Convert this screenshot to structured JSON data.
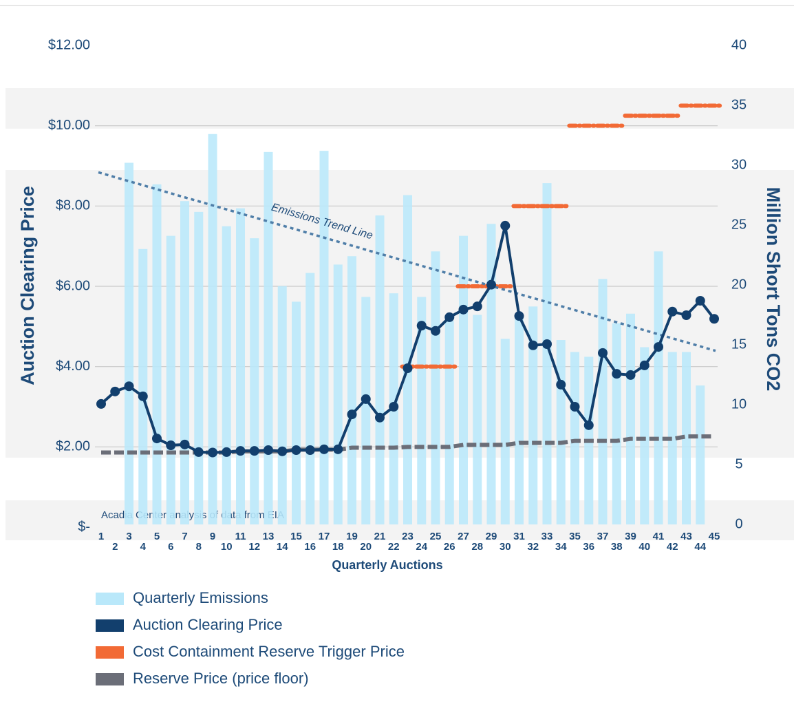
{
  "chart_data": {
    "type": "bar-line",
    "x_label": "Quarterly Auctions",
    "y_label": "Auction Clearing Price",
    "y2_label": "Million Short Tons CO2",
    "source": "Acadia Center analysis of data from EIA",
    "categories": [
      1,
      2,
      3,
      4,
      5,
      6,
      7,
      8,
      9,
      10,
      11,
      12,
      13,
      14,
      15,
      16,
      17,
      18,
      19,
      20,
      21,
      22,
      23,
      24,
      25,
      26,
      27,
      28,
      29,
      30,
      31,
      32,
      33,
      34,
      35,
      36,
      37,
      38,
      39,
      40,
      41,
      42,
      43,
      44,
      45
    ],
    "ylim": [
      0,
      12
    ],
    "yticks": [
      {
        "value": 0,
        "label": "$-"
      },
      {
        "value": 2,
        "label": "$2.00"
      },
      {
        "value": 4,
        "label": "$4.00"
      },
      {
        "value": 6,
        "label": "$6.00"
      },
      {
        "value": 8,
        "label": "$8.00"
      },
      {
        "value": 10,
        "label": "$10.00"
      },
      {
        "value": 12,
        "label": "$12.00"
      }
    ],
    "y2lim": [
      0,
      40
    ],
    "y2ticks": [
      0,
      5,
      10,
      15,
      20,
      25,
      30,
      35,
      40
    ],
    "grid": true,
    "series": [
      {
        "name": "Quarterly Emissions",
        "kind": "bar",
        "axis": "y2",
        "color": "#b9e8fa",
        "values": [
          null,
          null,
          30.2,
          23.0,
          28.4,
          24.1,
          27.0,
          26.1,
          32.6,
          24.9,
          26.4,
          23.9,
          31.1,
          19.9,
          18.6,
          21.0,
          31.2,
          21.7,
          22.4,
          19.0,
          25.8,
          19.3,
          27.5,
          19.0,
          22.8,
          17.0,
          24.1,
          17.5,
          25.1,
          15.5,
          17.5,
          18.2,
          28.5,
          15.4,
          14.4,
          14.0,
          20.5,
          16.8,
          17.6,
          14.8,
          22.8,
          14.4,
          14.4,
          11.6,
          null
        ]
      },
      {
        "name": "Auction Clearing Price",
        "kind": "line",
        "color": "#123f6d",
        "values": [
          3.07,
          3.38,
          3.51,
          3.26,
          2.21,
          2.04,
          2.06,
          1.87,
          1.86,
          1.87,
          1.9,
          1.9,
          1.92,
          1.89,
          1.92,
          1.92,
          1.94,
          1.94,
          2.81,
          3.19,
          2.73,
          3.0,
          3.96,
          5.02,
          4.89,
          5.23,
          5.42,
          5.5,
          6.04,
          7.51,
          5.26,
          4.53,
          4.56,
          3.55,
          3.0,
          2.54,
          4.34,
          3.82,
          3.79,
          4.03,
          4.49,
          5.37,
          5.28,
          5.64,
          5.19
        ]
      },
      {
        "name": "Cost Containment Reserve Trigger Price",
        "kind": "segments",
        "color": "#f26a35",
        "values": [
          null,
          null,
          null,
          null,
          null,
          null,
          null,
          null,
          null,
          null,
          null,
          null,
          null,
          null,
          null,
          null,
          null,
          null,
          null,
          null,
          null,
          null,
          4,
          4,
          4,
          4,
          6,
          6,
          6,
          6,
          8,
          8,
          8,
          8,
          10,
          10,
          10,
          10,
          10.25,
          10.25,
          10.25,
          10.25,
          10.5,
          10.5,
          10.5
        ]
      },
      {
        "name": "Reserve Price (price floor)",
        "kind": "dashed",
        "color": "#6b6e78",
        "values": [
          1.86,
          1.86,
          1.86,
          1.86,
          1.86,
          1.86,
          1.86,
          1.86,
          1.86,
          1.86,
          1.89,
          1.89,
          1.89,
          1.89,
          1.93,
          1.93,
          1.93,
          1.93,
          1.98,
          1.98,
          1.98,
          1.98,
          2.0,
          2.0,
          2.0,
          2.0,
          2.05,
          2.05,
          2.05,
          2.05,
          2.1,
          2.1,
          2.1,
          2.1,
          2.15,
          2.15,
          2.15,
          2.15,
          2.2,
          2.2,
          2.2,
          2.2,
          2.26,
          2.26,
          2.26
        ]
      }
    ],
    "trend_line": {
      "label": "Emissions Trend Line",
      "axis": "y2",
      "color": "#4f7ea8",
      "values": [
        29.4,
        14.5
      ]
    }
  }
}
